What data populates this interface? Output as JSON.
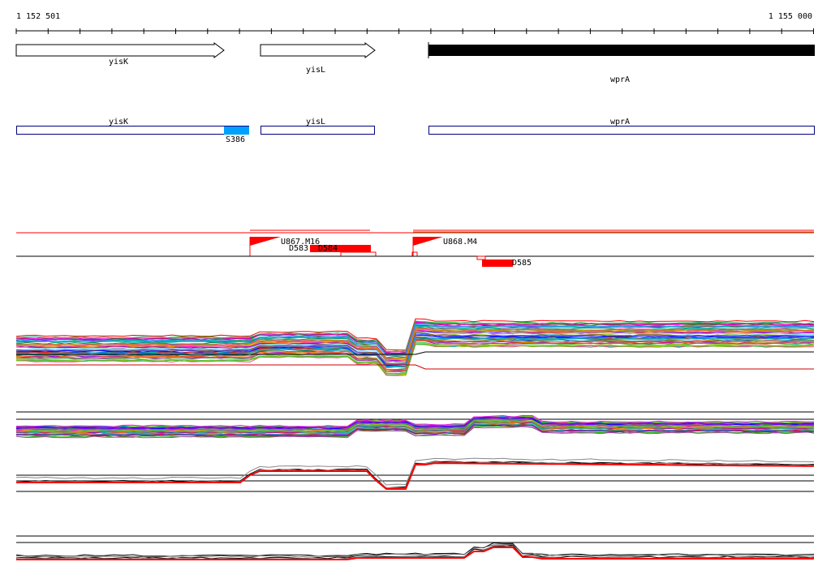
{
  "coordinates": {
    "start_label": "1 152 501",
    "end_label": "1 155 000"
  },
  "genes": [
    {
      "name": "yisK",
      "strand": "+",
      "style": "outline"
    },
    {
      "name": "yisL",
      "strand": "+",
      "style": "outline"
    },
    {
      "name": "wprA",
      "strand": "+",
      "style": "filled"
    }
  ],
  "transcripts": [
    {
      "name": "yisK"
    },
    {
      "name": "yisL"
    },
    {
      "name": "wprA"
    }
  ],
  "segment_marks": [
    {
      "name": "S386",
      "color": "#00a0ff"
    }
  ],
  "promoters": [
    {
      "name": "U867.M16",
      "color": "#ff0000"
    },
    {
      "name": "U868.M4",
      "color": "#ff0000"
    }
  ],
  "downregulated_regions": [
    {
      "name": "D583",
      "color": "#ff0000"
    },
    {
      "name": "D584",
      "color": "#ff0000"
    },
    {
      "name": "D585",
      "color": "#ff0000"
    }
  ],
  "colors": {
    "ruler": "#000000",
    "gene_fill": "#000000",
    "transcript_outline": "#000080",
    "highlight": "#ff0000",
    "segment": "#00a0ff"
  }
}
